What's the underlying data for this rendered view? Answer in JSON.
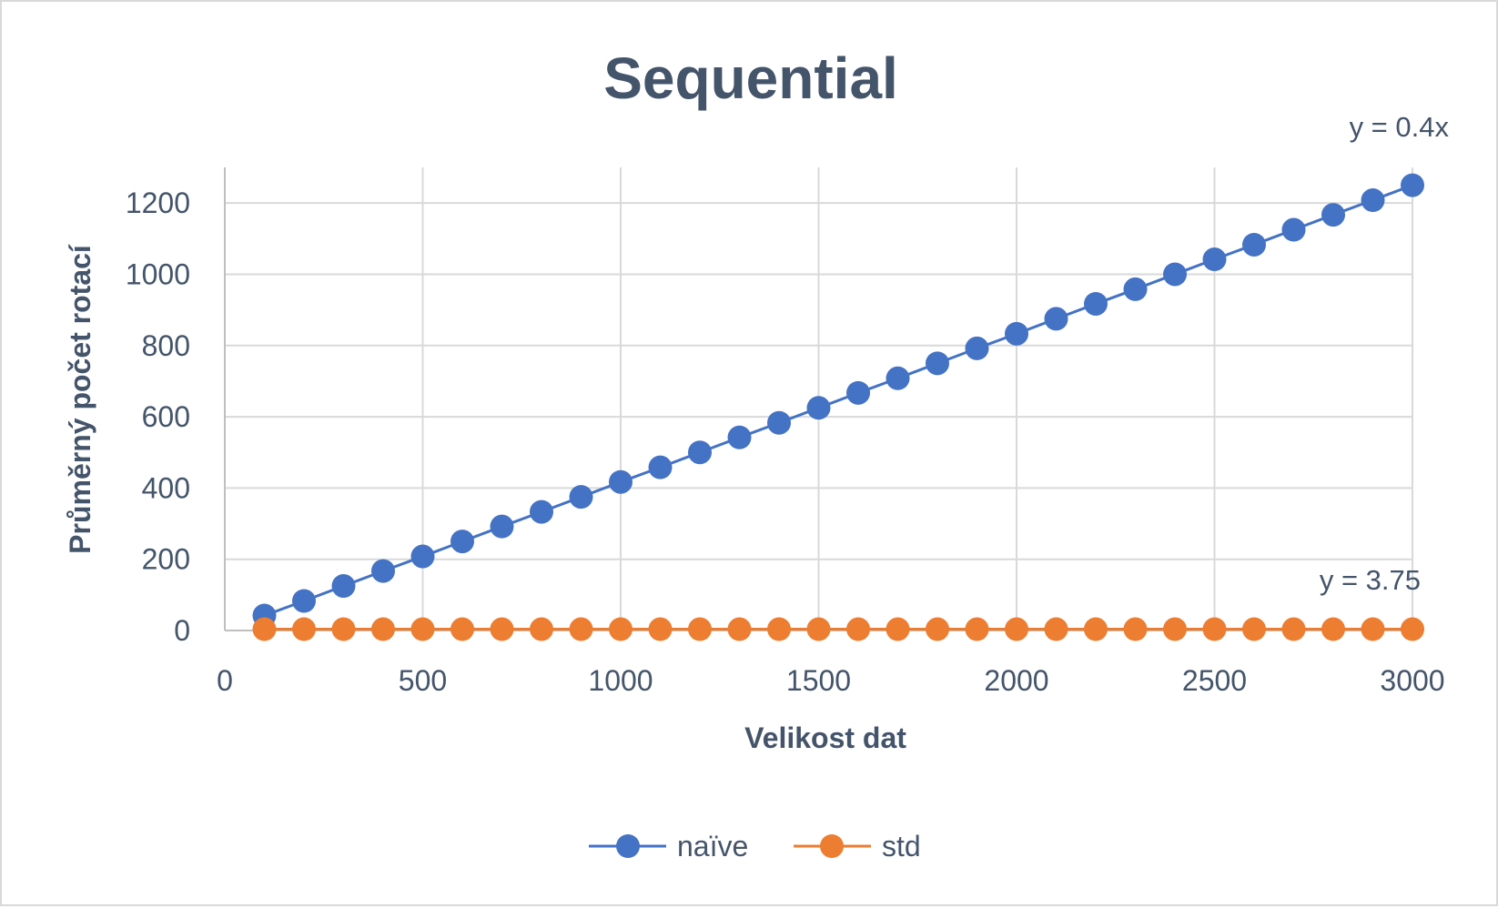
{
  "chart_data": {
    "type": "line",
    "title": "Sequential",
    "xlabel": "Velikost dat",
    "ylabel": "Průměrný počet rotací",
    "xlim": [
      0,
      3000
    ],
    "ylim": [
      0,
      1300
    ],
    "x_ticks": [
      0,
      500,
      1000,
      1500,
      2000,
      2500,
      3000
    ],
    "y_ticks": [
      0,
      200,
      400,
      600,
      800,
      1000,
      1200
    ],
    "grid": true,
    "legend": "bottom",
    "x": [
      100,
      200,
      300,
      400,
      500,
      600,
      700,
      800,
      900,
      1000,
      1100,
      1200,
      1300,
      1400,
      1500,
      1600,
      1700,
      1800,
      1900,
      2000,
      2100,
      2200,
      2300,
      2400,
      2500,
      2600,
      2700,
      2800,
      2900,
      3000
    ],
    "series": [
      {
        "name": "naïve",
        "color": "#4472c4",
        "values": [
          42,
          83,
          125,
          167,
          208,
          250,
          292,
          333,
          375,
          417,
          458,
          500,
          542,
          583,
          625,
          667,
          708,
          750,
          792,
          833,
          875,
          917,
          958,
          1000,
          1042,
          1083,
          1125,
          1167,
          1208,
          1250
        ]
      },
      {
        "name": "std",
        "color": "#ed7d31",
        "values": [
          3.75,
          3.75,
          3.75,
          3.75,
          3.75,
          3.75,
          3.75,
          3.75,
          3.75,
          3.75,
          3.75,
          3.75,
          3.75,
          3.75,
          3.75,
          3.75,
          3.75,
          3.75,
          3.75,
          3.75,
          3.75,
          3.75,
          3.75,
          3.75,
          3.75,
          3.75,
          3.75,
          3.75,
          3.75,
          3.75
        ]
      }
    ],
    "annotations": [
      {
        "text": "y = 0.4x",
        "series": "naïve"
      },
      {
        "text": "y = 3.75",
        "series": "std"
      }
    ]
  }
}
